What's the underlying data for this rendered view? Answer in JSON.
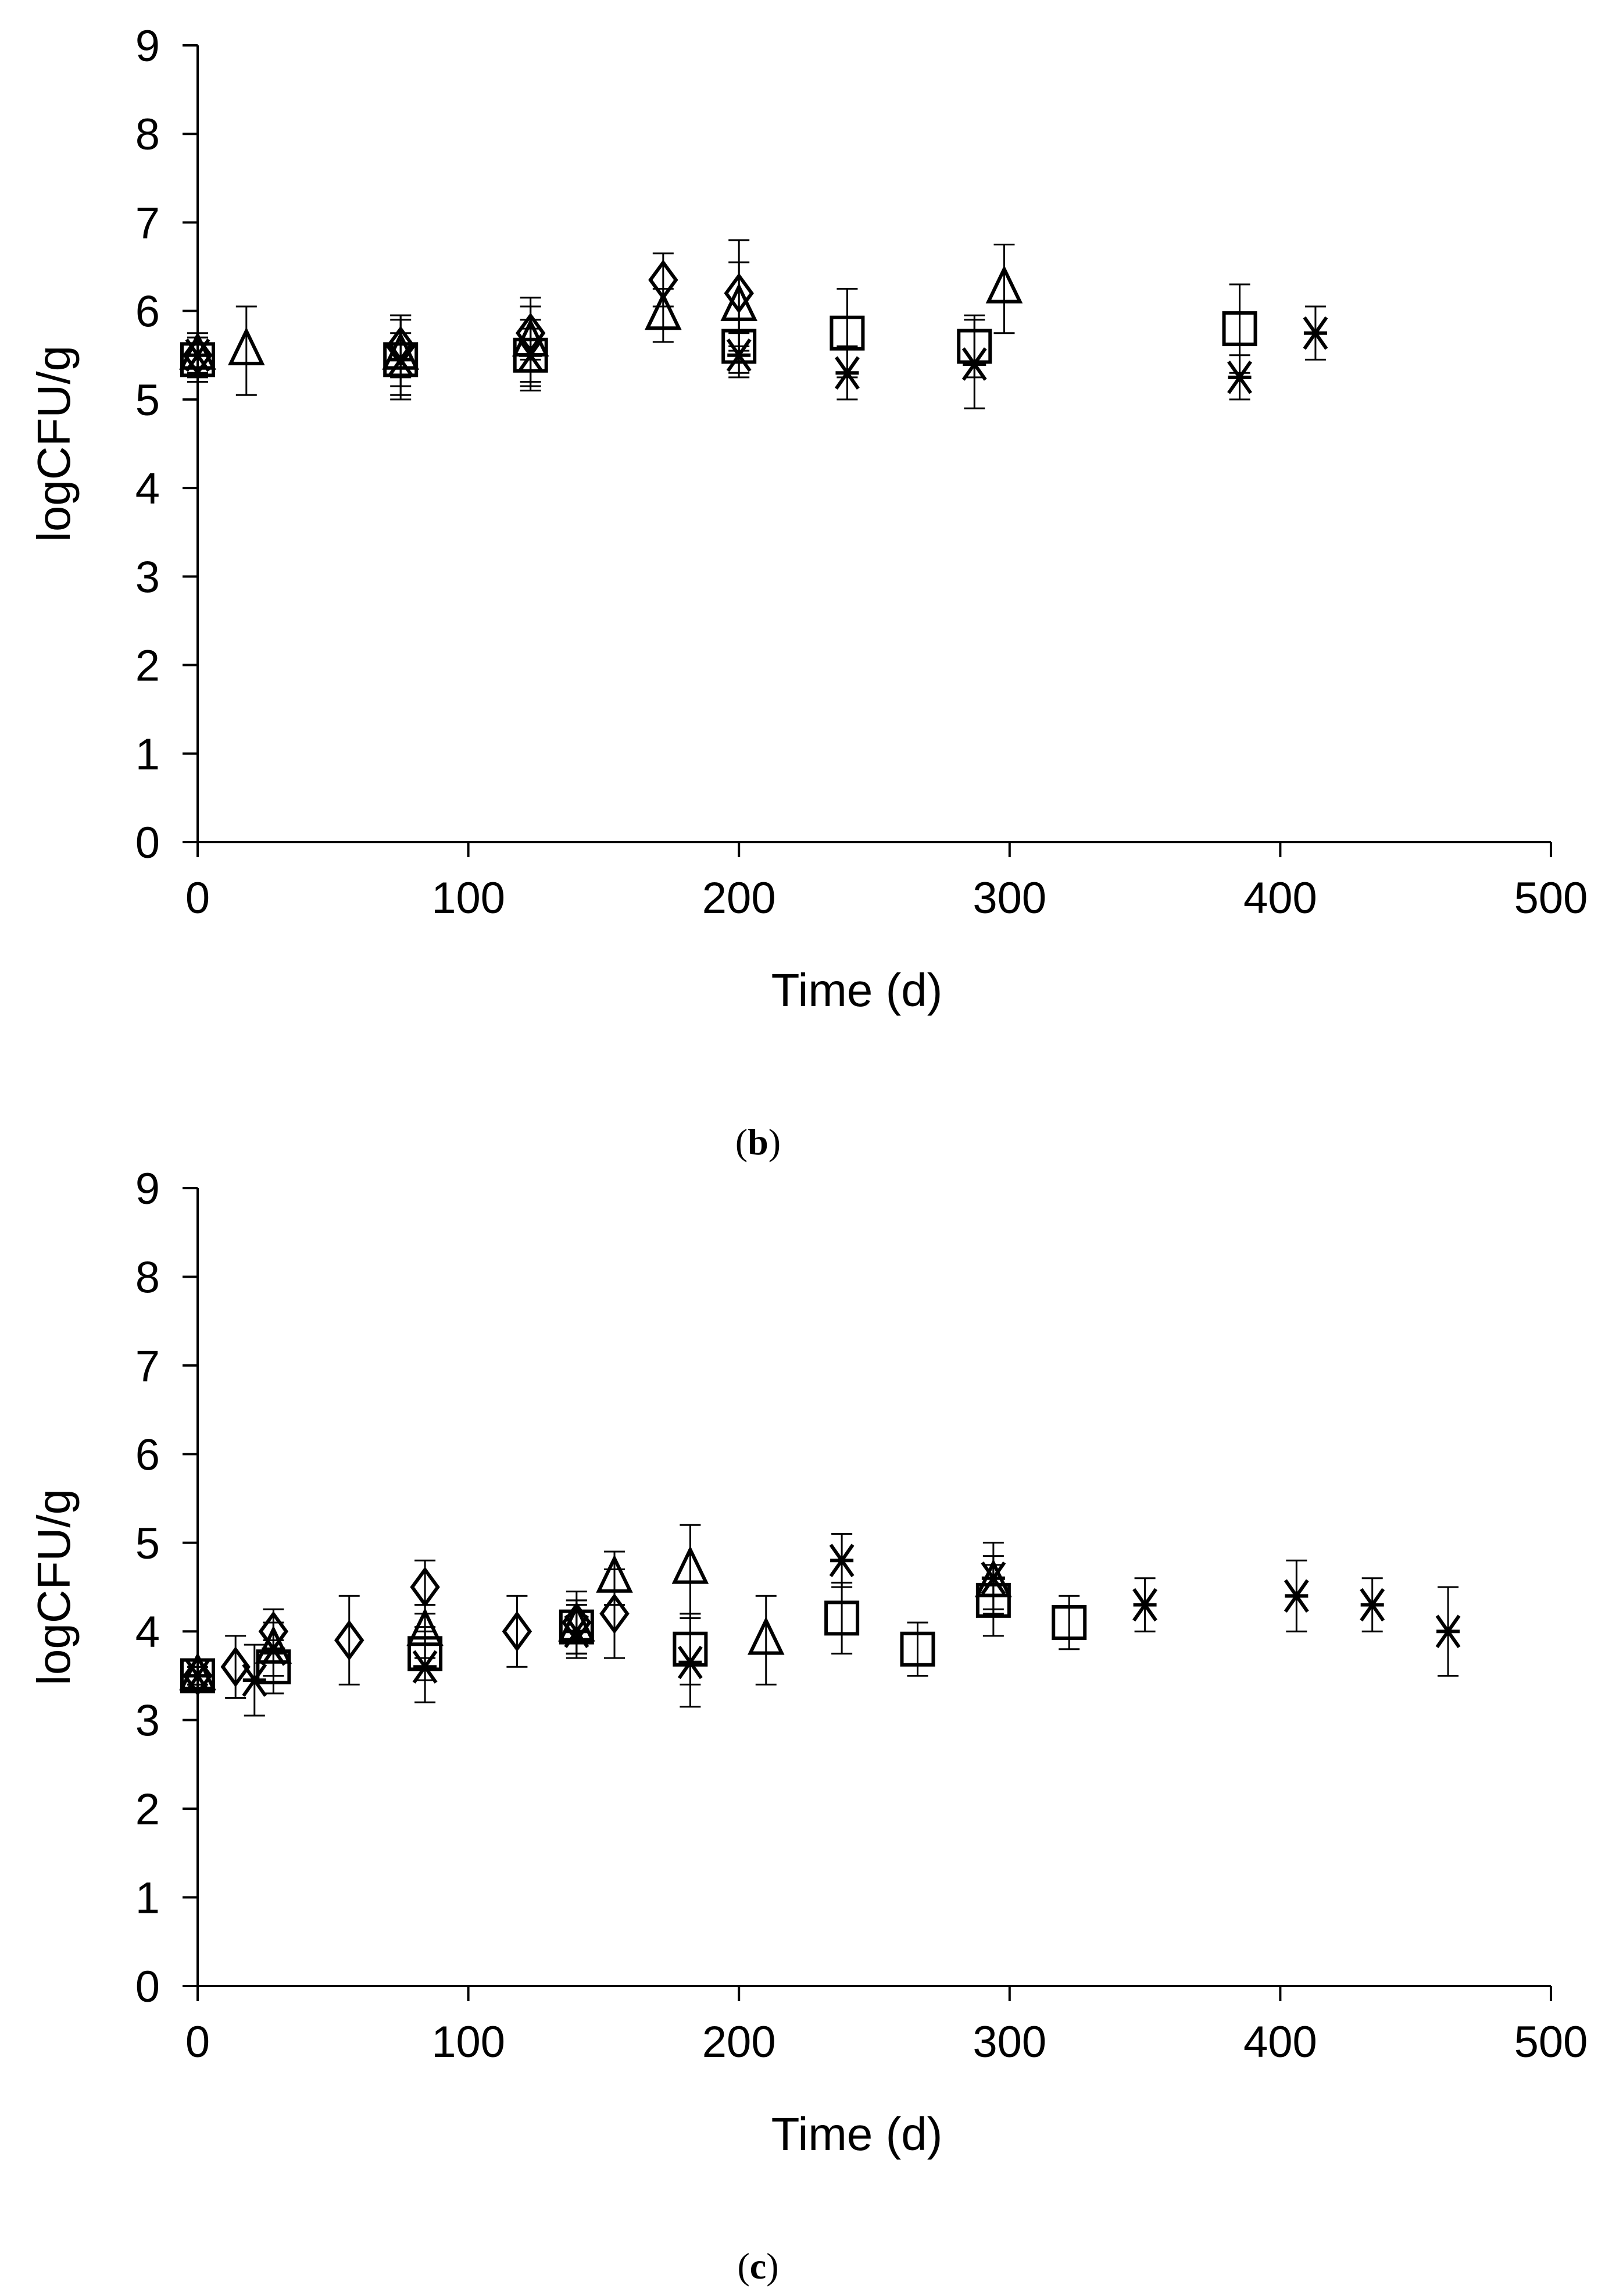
{
  "chart_data": [
    {
      "type": "scatter",
      "panel_label": {
        "open": "(",
        "letter": "b",
        "close": ")"
      },
      "title": "",
      "xlabel": "Time (d)",
      "ylabel": "logCFU/g",
      "xlim": [
        0,
        500
      ],
      "ylim": [
        0,
        9
      ],
      "xticks": [
        0,
        100,
        200,
        300,
        400,
        500
      ],
      "yticks": [
        0,
        1,
        2,
        3,
        4,
        5,
        6,
        7,
        8,
        9
      ],
      "grid": false,
      "legend": "none",
      "error_bars": true,
      "series": [
        {
          "marker": "diamond",
          "points": [
            [
              0,
              5.5,
              0.25
            ],
            [
              75,
              5.6,
              0.35
            ],
            [
              123,
              5.75,
              0.3
            ],
            [
              172,
              6.35,
              0.3
            ],
            [
              200,
              6.2,
              0.6
            ]
          ]
        },
        {
          "marker": "triangle",
          "points": [
            [
              0,
              5.5,
              0.2
            ],
            [
              18,
              5.55,
              0.5
            ],
            [
              75,
              5.5,
              0.45
            ],
            [
              123,
              5.65,
              0.5
            ],
            [
              172,
              5.95,
              0.3
            ],
            [
              200,
              6.05,
              0.5
            ],
            [
              298,
              6.25,
              0.5
            ]
          ]
        },
        {
          "marker": "square",
          "points": [
            [
              0,
              5.45,
              0.25
            ],
            [
              75,
              5.45,
              0.3
            ],
            [
              123,
              5.5,
              0.3
            ],
            [
              200,
              5.6,
              0.3
            ],
            [
              240,
              5.75,
              0.5
            ],
            [
              287,
              5.6,
              0.35
            ],
            [
              385,
              5.8,
              0.5
            ]
          ]
        },
        {
          "marker": "x",
          "points": [
            [
              0,
              5.5,
              0.2
            ],
            [
              75,
              5.45,
              0.45
            ],
            [
              123,
              5.5,
              0.4
            ],
            [
              200,
              5.5,
              0.25
            ],
            [
              240,
              5.3,
              0.3
            ],
            [
              287,
              5.4,
              0.5
            ],
            [
              385,
              5.25,
              0.25
            ],
            [
              413,
              5.75,
              0.3
            ]
          ]
        }
      ]
    },
    {
      "type": "scatter",
      "panel_label": {
        "open": "(",
        "letter": "c",
        "close": ")"
      },
      "title": "",
      "xlabel": "Time (d)",
      "ylabel": "logCFU/g",
      "xlim": [
        0,
        500
      ],
      "ylim": [
        0,
        9
      ],
      "xticks": [
        0,
        100,
        200,
        300,
        400,
        500
      ],
      "yticks": [
        0,
        1,
        2,
        3,
        4,
        5,
        6,
        7,
        8,
        9
      ],
      "grid": false,
      "legend": "none",
      "error_bars": true,
      "series": [
        {
          "marker": "diamond",
          "points": [
            [
              0,
              3.5,
              0.1
            ],
            [
              14,
              3.6,
              0.35
            ],
            [
              28,
              4.0,
              0.25
            ],
            [
              56,
              3.9,
              0.5
            ],
            [
              84,
              4.5,
              0.3
            ],
            [
              118,
              4.0,
              0.4
            ],
            [
              140,
              4.1,
              0.35
            ],
            [
              154,
              4.2,
              0.5
            ]
          ]
        },
        {
          "marker": "triangle",
          "points": [
            [
              0,
              3.5,
              0.1
            ],
            [
              28,
              3.8,
              0.3
            ],
            [
              84,
              4.0,
              0.3
            ],
            [
              140,
              4.05,
              0.3
            ],
            [
              154,
              4.6,
              0.3
            ],
            [
              182,
              4.7,
              0.5
            ],
            [
              210,
              3.9,
              0.5
            ],
            [
              294,
              4.55,
              0.3
            ]
          ]
        },
        {
          "marker": "square",
          "points": [
            [
              0,
              3.5,
              0.1
            ],
            [
              28,
              3.6,
              0.3
            ],
            [
              84,
              3.75,
              0.3
            ],
            [
              140,
              4.05,
              0.3
            ],
            [
              182,
              3.8,
              0.4
            ],
            [
              238,
              4.15,
              0.4
            ],
            [
              266,
              3.8,
              0.3
            ],
            [
              294,
              4.35,
              0.4
            ],
            [
              322,
              4.1,
              0.3
            ]
          ]
        },
        {
          "marker": "x",
          "points": [
            [
              0,
              3.5,
              0.1
            ],
            [
              21,
              3.45,
              0.4
            ],
            [
              28,
              3.8,
              0.3
            ],
            [
              84,
              3.6,
              0.4
            ],
            [
              140,
              4.0,
              0.3
            ],
            [
              182,
              3.65,
              0.5
            ],
            [
              238,
              4.8,
              0.3
            ],
            [
              294,
              4.6,
              0.4
            ],
            [
              350,
              4.3,
              0.3
            ],
            [
              406,
              4.4,
              0.4
            ],
            [
              434,
              4.3,
              0.3
            ],
            [
              462,
              4.0,
              0.5
            ]
          ]
        }
      ]
    }
  ]
}
